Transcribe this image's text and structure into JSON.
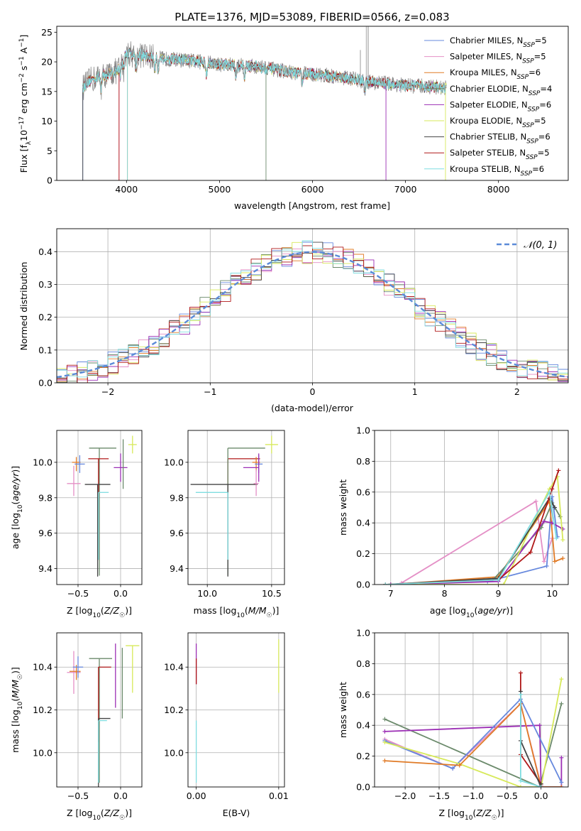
{
  "chart_data": [
    {
      "id": "spectrum",
      "type": "line",
      "title": "PLATE=1376, MJD=53089, FIBERID=0566, z=0.083",
      "xlabel": "wavelength [Angstrom, rest frame]",
      "ylabel": "Flux [f_λ 10^-17 erg cm^-2 s^-1 A^-1]",
      "xlim": [
        3250,
        8750
      ],
      "ylim": [
        0,
        26
      ],
      "xticks": [
        "4000",
        "5000",
        "6000",
        "7000",
        "8000"
      ],
      "yticks": [
        "0",
        "5",
        "10",
        "15",
        "20",
        "25"
      ],
      "grid": false,
      "legend_position": "upper-right",
      "data_color": "#808080",
      "continuum": {
        "x": [
          3520,
          3600,
          3700,
          3800,
          3900,
          4000,
          4100,
          4200,
          4400,
          4600,
          4800,
          5000,
          5200,
          5400,
          5600,
          5800,
          6000,
          6200,
          6400,
          6600,
          6800,
          7000,
          7200,
          7450
        ],
        "y": [
          15.5,
          16.8,
          17.5,
          17.8,
          18.5,
          21.5,
          21.2,
          21.0,
          20.5,
          20.3,
          20.0,
          19.6,
          19.4,
          19.2,
          18.7,
          18.2,
          17.9,
          17.6,
          17.2,
          16.6,
          16.4,
          16.0,
          15.9,
          15.6
        ]
      },
      "series": [
        {
          "name": "Chabrier MILES, N_SSP=5",
          "color": "#6688dd"
        },
        {
          "name": "Salpeter MILES, N_SSP=5",
          "color": "#e48fc6"
        },
        {
          "name": "Kroupa MILES, N_SSP=6",
          "color": "#e07b27"
        },
        {
          "name": "Chabrier ELODIE, N_SSP=4",
          "color": "#6b8a6b"
        },
        {
          "name": "Salpeter ELODIE, N_SSP=6",
          "color": "#9c2fb5"
        },
        {
          "name": "Kroupa ELODIE, N_SSP=5",
          "color": "#d7e95a"
        },
        {
          "name": "Chabrier STELIB, N_SSP=6",
          "color": "#444444"
        },
        {
          "name": "Salpeter STELIB, N_SSP=5",
          "color": "#b01818"
        },
        {
          "name": "Kroupa STELIB, N_SSP=6",
          "color": "#7fdde0"
        }
      ]
    },
    {
      "id": "residuals",
      "type": "line",
      "xlabel": "(data-model)/error",
      "ylabel": "Normed distribution",
      "xlim": [
        -2.5,
        2.5
      ],
      "ylim": [
        0,
        0.47
      ],
      "xticks": [
        "−2",
        "−1",
        "0",
        "1",
        "2"
      ],
      "yticks": [
        "0.0",
        "0.1",
        "0.2",
        "0.3",
        "0.4"
      ],
      "grid": true,
      "legend": "𝒩(0, 1)",
      "legend_position": "upper-right",
      "gaussian": {
        "mean": 0,
        "sigma": 1,
        "color": "#5b8bd8"
      }
    },
    {
      "id": "age_vs_Z",
      "type": "scatter",
      "xlabel": "Z [log₁₀(Z/Z☉)]",
      "ylabel": "age  [log₁₀(age/yr)]",
      "xlim": [
        -0.75,
        0.25
      ],
      "ylim": [
        9.31,
        10.18
      ],
      "xticks": [
        "−0.5",
        "0.0"
      ],
      "yticks": [
        "9.4",
        "9.6",
        "9.8",
        "10.0"
      ],
      "grid": true,
      "points": [
        {
          "x": -0.52,
          "y": 10.0,
          "xerr": [
            0.05,
            0.05
          ],
          "yerr": [
            0.05,
            0.03
          ],
          "color": "#e07b27"
        },
        {
          "x": -0.48,
          "y": 9.99,
          "xerr": [
            0.06,
            0.06
          ],
          "yerr": [
            0.05,
            0.05
          ],
          "color": "#6688dd"
        },
        {
          "x": -0.55,
          "y": 9.88,
          "xerr": [
            0.08,
            0.08
          ],
          "yerr": [
            0.07,
            0.1
          ],
          "color": "#e48fc6"
        },
        {
          "x": -0.25,
          "y": 10.08,
          "xerr": [
            0.12,
            0.2
          ],
          "yerr": [
            0.72,
            0.0
          ],
          "color": "#6b8a6b"
        },
        {
          "x": -0.26,
          "y": 10.02,
          "xerr": [
            0.12,
            0.12
          ],
          "yerr": [
            0.57,
            0.0
          ],
          "color": "#b01818"
        },
        {
          "x": -0.27,
          "y": 9.875,
          "xerr": [
            0.15,
            0.15
          ],
          "yerr": [
            0.52,
            0.0
          ],
          "color": "#444444"
        },
        {
          "x": -0.26,
          "y": 9.83,
          "xerr": [
            0.0,
            0.12
          ],
          "yerr": [
            0.38,
            0.0
          ],
          "color": "#7fdde0"
        },
        {
          "x": 0.0,
          "y": 9.97,
          "xerr": [
            0.08,
            0.08
          ],
          "yerr": [
            0.08,
            0.08
          ],
          "color": "#9c2fb5"
        },
        {
          "x": 0.14,
          "y": 10.1,
          "xerr": [
            0.05,
            0.05
          ],
          "yerr": [
            0.05,
            0.05
          ],
          "color": "#d7e95a"
        },
        {
          "x": 0.03,
          "y": 10.05,
          "xerr": [
            0.0,
            0.0
          ],
          "yerr": [
            0.2,
            0.08
          ],
          "color": "#6b8a6b"
        }
      ]
    },
    {
      "id": "age_vs_mass",
      "type": "scatter",
      "xlabel": "mass [log₁₀(M/M☉)]",
      "ylabel": "",
      "xlim": [
        9.85,
        10.6
      ],
      "ylim": [
        9.31,
        10.18
      ],
      "xticks": [
        "10.0",
        "10.5"
      ],
      "yticks": [
        "9.4",
        "9.6",
        "9.8",
        "10.0"
      ],
      "grid": true,
      "points": [
        {
          "x": 10.16,
          "y": 10.02,
          "xerr": [
            0.0,
            0.25
          ],
          "yerr": [
            0.57,
            0.0
          ],
          "color": "#b01818"
        },
        {
          "x": 10.16,
          "y": 10.08,
          "xerr": [
            0.0,
            0.29
          ],
          "yerr": [
            0.72,
            0.0
          ],
          "color": "#6b8a6b"
        },
        {
          "x": 10.16,
          "y": 9.875,
          "xerr": [
            0.29,
            0.23
          ],
          "yerr": [
            0.52,
            0.0
          ],
          "color": "#444444"
        },
        {
          "x": 10.16,
          "y": 9.83,
          "xerr": [
            0.25,
            0.0
          ],
          "yerr": [
            0.38,
            0.0
          ],
          "color": "#7fdde0"
        },
        {
          "x": 10.38,
          "y": 10.0,
          "xerr": [
            0.03,
            0.03
          ],
          "yerr": [
            0.05,
            0.03
          ],
          "color": "#e07b27"
        },
        {
          "x": 10.4,
          "y": 9.99,
          "xerr": [
            0.03,
            0.03
          ],
          "yerr": [
            0.05,
            0.05
          ],
          "color": "#6688dd"
        },
        {
          "x": 10.38,
          "y": 9.88,
          "xerr": [
            0.02,
            0.02
          ],
          "yerr": [
            0.07,
            0.08
          ],
          "color": "#e48fc6"
        },
        {
          "x": 10.4,
          "y": 9.97,
          "xerr": [
            0.12,
            0.0
          ],
          "yerr": [
            0.08,
            0.08
          ],
          "color": "#9c2fb5"
        },
        {
          "x": 10.5,
          "y": 10.1,
          "xerr": [
            0.05,
            0.05
          ],
          "yerr": [
            0.05,
            0.05
          ],
          "color": "#d7e95a"
        }
      ]
    },
    {
      "id": "weight_vs_age",
      "type": "line",
      "xlabel": "age  [log₁₀(age/yr)]",
      "ylabel": "mass weight",
      "xlim": [
        6.7,
        10.3
      ],
      "ylim": [
        0,
        1.0
      ],
      "xticks": [
        "7",
        "8",
        "9",
        "10"
      ],
      "yticks": [
        "0.0",
        "0.2",
        "0.4",
        "0.6",
        "0.8",
        "1.0"
      ],
      "grid": true,
      "series": [
        {
          "color": "#e48fc6",
          "x": [
            7.2,
            9.7,
            9.85,
            10.0
          ],
          "y": [
            0.01,
            0.54,
            0.15,
            0.3
          ]
        },
        {
          "color": "#6688dd",
          "x": [
            6.9,
            8.8,
            9.9,
            10.0,
            10.1
          ],
          "y": [
            0.0,
            0.02,
            0.12,
            0.57,
            0.31
          ]
        },
        {
          "color": "#e07b27",
          "x": [
            7.0,
            9.0,
            9.95,
            10.05,
            10.2
          ],
          "y": [
            0.0,
            0.05,
            0.54,
            0.15,
            0.17
          ]
        },
        {
          "color": "#6b8a6b",
          "x": [
            6.9,
            8.9,
            9.8,
            10.0,
            10.15
          ],
          "y": [
            0.0,
            0.03,
            0.37,
            0.53,
            0.44
          ]
        },
        {
          "color": "#9c2fb5",
          "x": [
            7.0,
            9.0,
            9.85,
            10.0,
            10.2
          ],
          "y": [
            0.0,
            0.02,
            0.41,
            0.4,
            0.36
          ]
        },
        {
          "color": "#d7e95a",
          "x": [
            6.9,
            9.1,
            9.95,
            10.1,
            10.2
          ],
          "y": [
            0.0,
            0.0,
            0.62,
            0.7,
            0.29
          ]
        },
        {
          "color": "#444444",
          "x": [
            6.9,
            9.0,
            9.95,
            10.05
          ],
          "y": [
            0.0,
            0.04,
            0.56,
            0.5
          ]
        },
        {
          "color": "#b01818",
          "x": [
            6.9,
            9.0,
            9.6,
            10.0,
            10.12
          ],
          "y": [
            0.0,
            0.03,
            0.21,
            0.62,
            0.74
          ]
        },
        {
          "color": "#7fdde0",
          "x": [
            6.9,
            9.0,
            9.95,
            10.08
          ],
          "y": [
            0.0,
            0.03,
            0.6,
            0.3
          ]
        }
      ]
    },
    {
      "id": "mass_vs_Z",
      "type": "scatter",
      "xlabel": "Z [log₁₀(Z/Z☉)]",
      "ylabel": "mass [log₁₀(M/M☉)]",
      "xlim": [
        -0.75,
        0.25
      ],
      "ylim": [
        9.84,
        10.56
      ],
      "xticks": [
        "−0.5",
        "0.0"
      ],
      "yticks": [
        "10.0",
        "10.2",
        "10.4"
      ],
      "grid": true,
      "points": [
        {
          "x": -0.55,
          "y": 10.375,
          "xerr": [
            0.08,
            0.08
          ],
          "yerr": [
            0.1,
            0.1
          ],
          "color": "#e48fc6"
        },
        {
          "x": -0.52,
          "y": 10.38,
          "xerr": [
            0.08,
            0.05
          ],
          "yerr": [
            0.04,
            0.03
          ],
          "color": "#e07b27"
        },
        {
          "x": -0.5,
          "y": 10.4,
          "xerr": [
            0.06,
            0.06
          ],
          "yerr": [
            0.05,
            0.05
          ],
          "color": "#6688dd"
        },
        {
          "x": -0.25,
          "y": 10.44,
          "xerr": [
            0.12,
            0.15
          ],
          "yerr": [
            0.58,
            0.0
          ],
          "color": "#6b8a6b"
        },
        {
          "x": -0.26,
          "y": 10.4,
          "xerr": [
            0.0,
            0.15
          ],
          "yerr": [
            0.35,
            0.0
          ],
          "color": "#b01818"
        },
        {
          "x": -0.26,
          "y": 10.16,
          "xerr": [
            0.0,
            0.14
          ],
          "yerr": [
            0.35,
            0.0
          ],
          "color": "#444444"
        },
        {
          "x": -0.26,
          "y": 10.15,
          "xerr": [
            0.0,
            0.1
          ],
          "yerr": [
            0.29,
            0.0
          ],
          "color": "#7fdde0"
        },
        {
          "x": -0.06,
          "y": 10.4,
          "xerr": [
            0.0,
            0.0
          ],
          "yerr": [
            0.19,
            0.11
          ],
          "color": "#9c2fb5"
        },
        {
          "x": 0.14,
          "y": 10.5,
          "xerr": [
            0.08,
            0.08
          ],
          "yerr": [
            0.22,
            0.0
          ],
          "color": "#d7e95a"
        },
        {
          "x": 0.02,
          "y": 10.49,
          "xerr": [
            0.0,
            0.0
          ],
          "yerr": [
            0.33,
            0.0
          ],
          "color": "#6b8a6b"
        }
      ]
    },
    {
      "id": "mass_vs_ebv",
      "type": "scatter",
      "xlabel": "E(B-V)",
      "ylabel": "",
      "xlim": [
        -0.001,
        0.0107
      ],
      "ylim": [
        9.84,
        10.56
      ],
      "xticks": [
        "0.00",
        "0.01"
      ],
      "yticks": [
        "10.0",
        "10.2",
        "10.4"
      ],
      "grid": true,
      "points": [
        {
          "x": 0.0,
          "y": 10.4,
          "xerr": [
            0,
            0
          ],
          "yerr": [
            0.08,
            0.11
          ],
          "color": "#9c2fb5"
        },
        {
          "x": 0.0,
          "y": 10.38,
          "xerr": [
            0,
            0
          ],
          "yerr": [
            0.06,
            0.06
          ],
          "color": "#b01818"
        },
        {
          "x": 0.0,
          "y": 10.15,
          "xerr": [
            0,
            0
          ],
          "yerr": [
            0.29,
            0.0
          ],
          "color": "#7fdde0"
        },
        {
          "x": 0.01,
          "y": 10.49,
          "xerr": [
            0,
            0
          ],
          "yerr": [
            0.21,
            0.04
          ],
          "color": "#d7e95a"
        }
      ]
    },
    {
      "id": "weight_vs_Z",
      "type": "line",
      "xlabel": "Z [log₁₀(Z/Z☉)]",
      "ylabel": "mass weight",
      "xlim": [
        -2.45,
        0.4
      ],
      "ylim": [
        0,
        1.0
      ],
      "xticks": [
        "−2.0",
        "−1.5",
        "−1.0",
        "−0.5",
        "0.0"
      ],
      "yticks": [
        "0.0",
        "0.2",
        "0.4",
        "0.6",
        "0.8",
        "1.0"
      ],
      "grid": true,
      "series": [
        {
          "color": "#6b8a6b",
          "x": [
            -2.3,
            -0.02,
            0.3
          ],
          "y": [
            0.44,
            0.0,
            0.54
          ]
        },
        {
          "color": "#9c2fb5",
          "x": [
            -2.3,
            -0.02,
            0.0,
            0.3,
            0.3
          ],
          "y": [
            0.36,
            0.4,
            0.0,
            0.0,
            0.19
          ]
        },
        {
          "color": "#e48fc6",
          "x": [
            -2.3,
            -1.3,
            -0.3,
            0.0
          ],
          "y": [
            0.31,
            0.12,
            0.54,
            0.01
          ]
        },
        {
          "color": "#6688dd",
          "x": [
            -2.3,
            -1.3,
            -0.3,
            0.3
          ],
          "y": [
            0.3,
            0.12,
            0.57,
            0.03
          ]
        },
        {
          "color": "#d7e95a",
          "x": [
            -2.3,
            -1.2,
            -0.3,
            0.0,
            0.3
          ],
          "y": [
            0.29,
            0.15,
            0.0,
            0.0,
            0.7
          ]
        },
        {
          "color": "#e07b27",
          "x": [
            -2.3,
            -1.2,
            -0.3,
            0.0,
            0.3
          ],
          "y": [
            0.17,
            0.14,
            0.54,
            0.0,
            0.0
          ]
        },
        {
          "color": "#b01818",
          "x": [
            -0.3,
            -0.3,
            0.0,
            0.0
          ],
          "y": [
            0.74,
            0.21,
            0.02,
            0.0
          ]
        },
        {
          "color": "#444444",
          "x": [
            -0.3,
            -0.3,
            0.0,
            0.0
          ],
          "y": [
            0.62,
            0.3,
            0.0,
            0.02
          ]
        },
        {
          "color": "#7fdde0",
          "x": [
            -0.3,
            -0.3,
            0.0
          ],
          "y": [
            0.6,
            0.04,
            0.0
          ]
        }
      ]
    }
  ]
}
